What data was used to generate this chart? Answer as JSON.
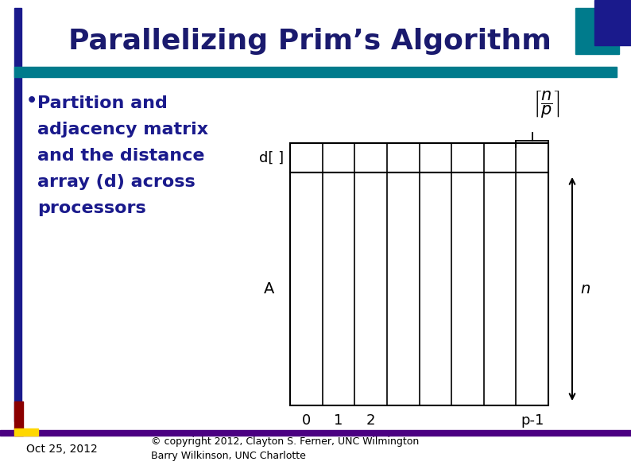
{
  "title": "Parallelizing Prim’s Algorithm",
  "title_color": "#1a1a6e",
  "bg_color": "#ffffff",
  "teal_color": "#007b8c",
  "dark_blue": "#1a1a8c",
  "dark_red": "#8b0000",
  "yellow": "#ffd700",
  "purple_bar": "#4b0082",
  "text_blue": "#1a1a8c",
  "bullet_text_lines": [
    "Partition and",
    "adjacency matrix",
    "and the distance",
    "array (d) across",
    "processors"
  ],
  "d_label": "d[ ]",
  "A_label": "A",
  "n_label": "n",
  "x_labels": [
    "0",
    "1",
    "2",
    "p-1"
  ],
  "num_cols": 8,
  "footer_date": "Oct 25, 2012",
  "footer_copyright": "© copyright 2012, Clayton S. Ferner, UNC Wilmington\nBarry Wilkinson, UNC Charlotte"
}
